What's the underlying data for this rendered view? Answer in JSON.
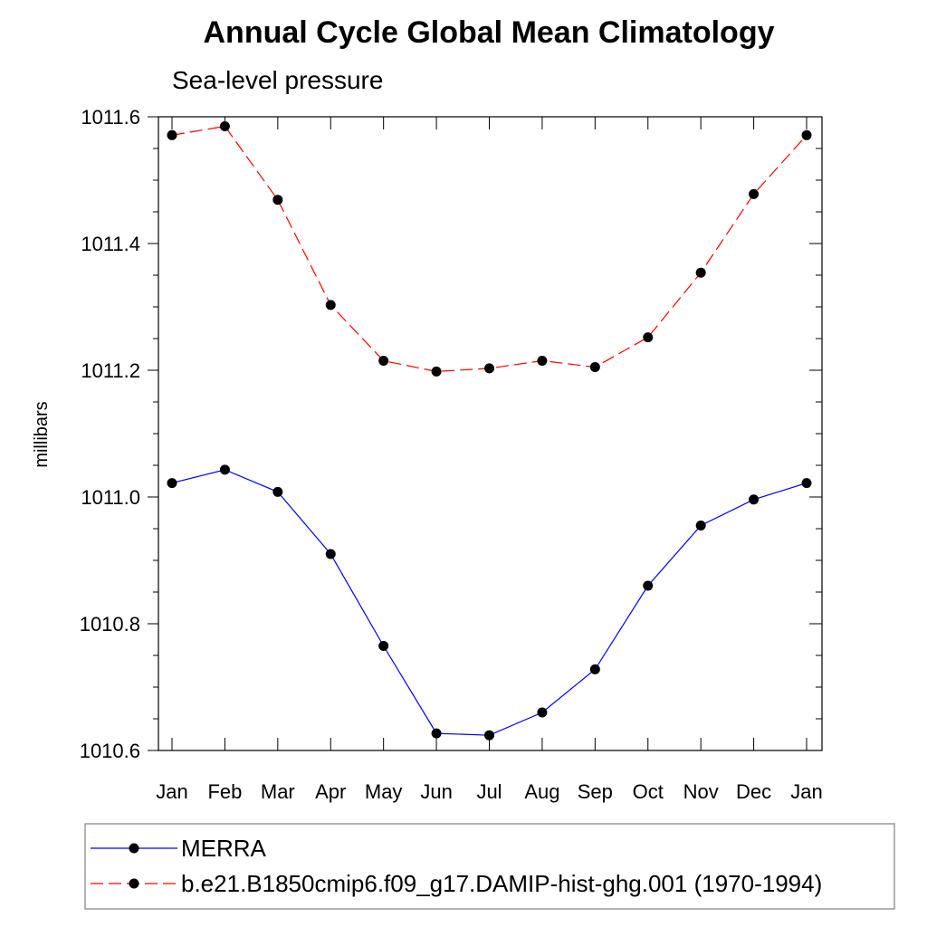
{
  "chart_data": {
    "type": "line",
    "title": "Annual Cycle Global Mean Climatology",
    "subtitle": "Sea-level pressure",
    "ylabel": "millibars",
    "xlabel": "",
    "categories": [
      "Jan",
      "Feb",
      "Mar",
      "Apr",
      "May",
      "Jun",
      "Jul",
      "Aug",
      "Sep",
      "Oct",
      "Nov",
      "Dec",
      "Jan"
    ],
    "ylim": [
      1010.6,
      1011.6
    ],
    "yticks": [
      "1010.6",
      "1010.8",
      "1011.0",
      "1011.2",
      "1011.4",
      "1011.6"
    ],
    "legend_position": "bottom",
    "series": [
      {
        "name": "MERRA",
        "color": "#0000ff",
        "line_style": "solid",
        "marker": "filled-circle",
        "values": [
          1011.022,
          1011.043,
          1011.008,
          1010.91,
          1010.765,
          1010.627,
          1010.624,
          1010.66,
          1010.728,
          1010.86,
          1010.955,
          1010.996,
          1011.022
        ]
      },
      {
        "name": "b.e21.B1850cmip6.f09_g17.DAMIP-hist-ghg.001 (1970-1994)",
        "color": "#ff0000",
        "line_style": "dashed",
        "marker": "filled-circle",
        "values": [
          1011.571,
          1011.585,
          1011.469,
          1011.303,
          1011.215,
          1011.198,
          1011.203,
          1011.215,
          1011.205,
          1011.252,
          1011.354,
          1011.478,
          1011.571
        ]
      }
    ]
  }
}
